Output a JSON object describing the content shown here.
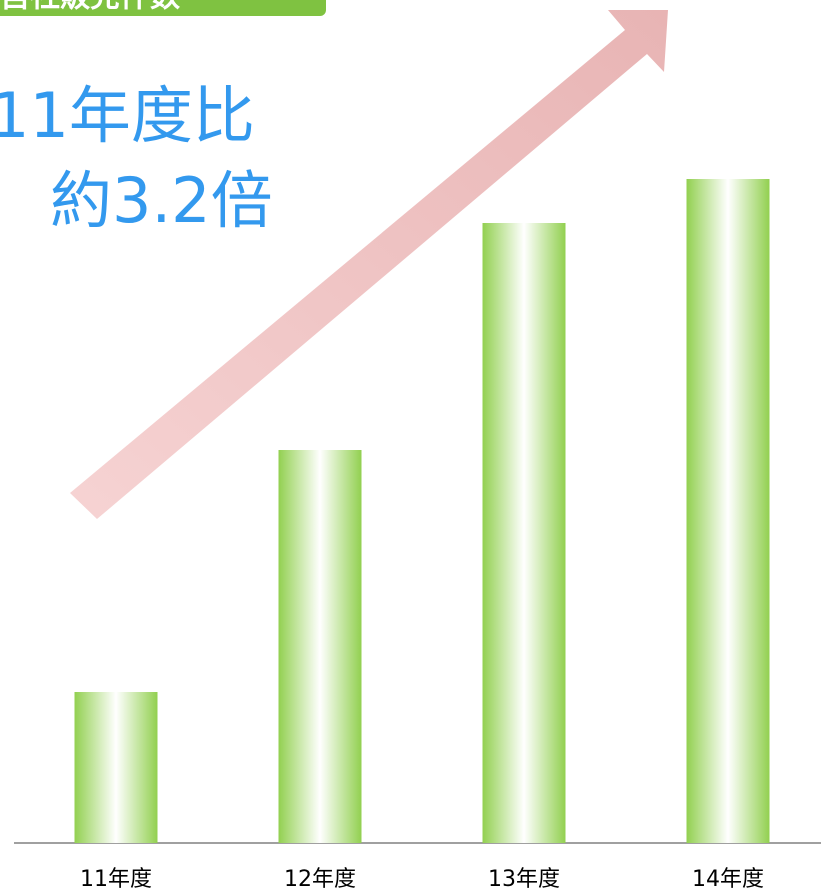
{
  "chart_data": {
    "type": "bar",
    "title": "自社販売件数",
    "annotation": [
      "11年度比",
      "約3.2倍"
    ],
    "categories": [
      "11年度",
      "12年度",
      "13年度",
      "14年度"
    ],
    "values": [
      151,
      393,
      620,
      664
    ],
    "color": "#92d050",
    "ylim": [
      0,
      700
    ],
    "grid": false
  }
}
